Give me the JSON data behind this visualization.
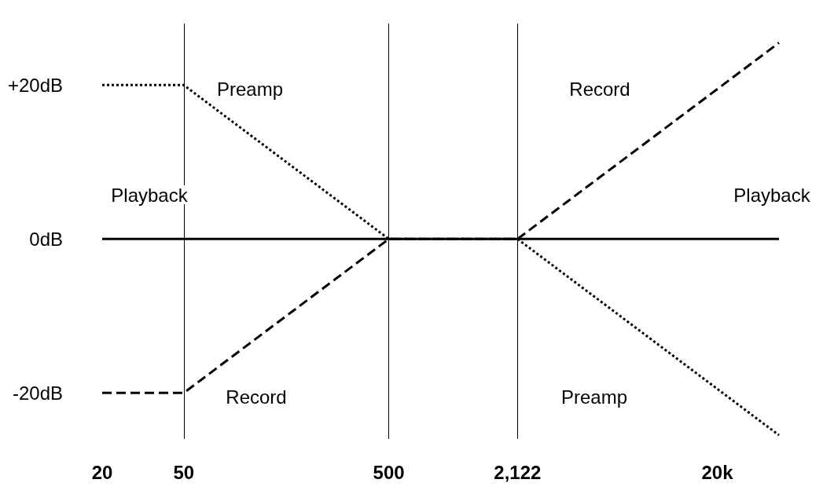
{
  "chart_data": {
    "type": "line",
    "log": "x",
    "xlim": [
      20,
      40000
    ],
    "xticks": [
      20,
      50,
      500,
      {
        "value": 2122,
        "label": "2,122"
      },
      {
        "value": 20000,
        "label": "20k"
      }
    ],
    "ylim": [
      -26,
      28
    ],
    "yticks": [
      {
        "value": 20,
        "label": "+20dB"
      },
      {
        "value": 0,
        "label": "0dB"
      },
      {
        "value": -20,
        "label": "-20dB"
      }
    ],
    "grid": "x",
    "marker": "none",
    "series": [
      {
        "color": "#000000",
        "line_style": "solid",
        "x": [
          20,
          40000
        ],
        "values": [
          0,
          0
        ]
      },
      {
        "color": "#000000",
        "line_style": "dashed",
        "x": [
          20,
          50,
          500,
          2122,
          40000
        ],
        "values": [
          -20,
          -20,
          0,
          0,
          25.5
        ]
      },
      {
        "color": "#000000",
        "line_style": "dotted",
        "x": [
          20,
          50,
          500,
          2122,
          40000
        ],
        "values": [
          20,
          20,
          0,
          0,
          -25.5
        ]
      }
    ],
    "annotations": [
      "Playback",
      "Playback",
      "Preamp",
      "Record",
      "Record",
      "Preamp"
    ]
  }
}
